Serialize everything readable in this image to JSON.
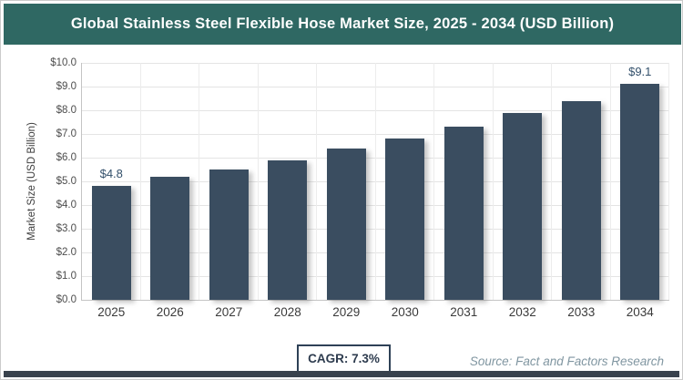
{
  "header": {
    "title": "Global Stainless Steel Flexible Hose Market Size, 2025 - 2034 (USD Billion)",
    "bg_color": "#2F6863"
  },
  "chart_data": {
    "type": "bar",
    "title": "Global Stainless Steel Flexible Hose Market Size, 2025 - 2034 (USD Billion)",
    "xlabel": "",
    "ylabel": "Market Size (USD Billion)",
    "categories": [
      "2025",
      "2026",
      "2027",
      "2028",
      "2029",
      "2030",
      "2031",
      "2032",
      "2033",
      "2034"
    ],
    "values": [
      4.8,
      5.2,
      5.5,
      5.9,
      6.4,
      6.8,
      7.3,
      7.9,
      8.4,
      9.1
    ],
    "point_labels": [
      "$4.8",
      "",
      "",
      "",
      "",
      "",
      "",
      "",
      "",
      "$9.1"
    ],
    "ytick_labels": [
      "$0.0",
      "$1.0",
      "$2.0",
      "$3.0",
      "$4.0",
      "$5.0",
      "$6.0",
      "$7.0",
      "$8.0",
      "$9.0",
      "$10.0"
    ],
    "ylim": [
      0,
      10
    ],
    "grid": true,
    "legend": false,
    "bar_color": "#3A4D60"
  },
  "footer": {
    "cagr_label": "CAGR: 7.3%",
    "source": "Source: Fact and Factors Research"
  },
  "colors": {
    "accent_teal": "#2F6863",
    "bar": "#3A4D60",
    "data_label": "#33506B",
    "bottom_strip": "#39424D",
    "grid_h": "#E4E4E4",
    "grid_v": "#ECECEC"
  }
}
